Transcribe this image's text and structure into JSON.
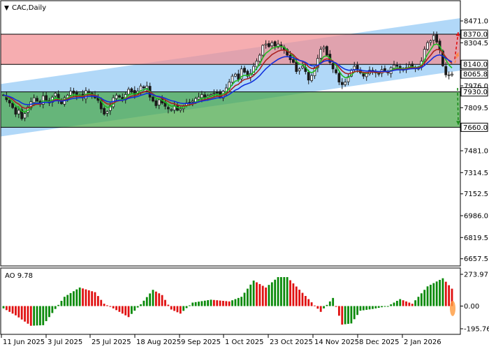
{
  "header": {
    "symbol_label": "CAC,Daily",
    "menu_glyph": "▼"
  },
  "colors": {
    "channel": "#a8d4f7",
    "resistance_zone": "#f28e92",
    "support_zone": "#4aa84a",
    "ema_fast": "#22bb22",
    "ema_mid": "#aa2222",
    "ema_slow": "#1030dd",
    "candle": "#1a1a1a",
    "ao_up": "#0a8a0a",
    "ao_down": "#e01010",
    "arrow_up": "#e01010",
    "arrow_down": "#1a8a1a"
  },
  "chart_data": [
    {
      "type": "candlestick",
      "title": "CAC,Daily",
      "ylim": [
        7620,
        8520
      ],
      "y_ticks": [
        "8471.0",
        "8304.5",
        "8138.0",
        "7976.0",
        "7809.5",
        "7481.0",
        "7314.5",
        "7152.5",
        "6986.0",
        "6819.5",
        "6657.5"
      ],
      "x_ticks": [
        "11 Jun 2025",
        "3 Jul 2025",
        "25 Jul 2025",
        "18 Aug 2025",
        "9 Sep 2025",
        "1 Oct 2025",
        "23 Oct 2025",
        "14 Nov 2025",
        "8 Dec 2025",
        "2 Jan 2026"
      ],
      "levels": [
        {
          "value": 8370.0,
          "label": "8370.0"
        },
        {
          "value": 8140.0,
          "label": "8140.0"
        },
        {
          "value": 7930.0,
          "label": "7930.0"
        },
        {
          "value": 7660.0,
          "label": "7660.0"
        }
      ],
      "current_price": {
        "value": 8065.8,
        "label": "8065.8"
      },
      "zones": [
        {
          "name": "resistance",
          "from": 8140,
          "to": 8370
        },
        {
          "name": "support",
          "from": 7660,
          "to": 7930
        }
      ],
      "channel": {
        "upper": [
          [
            0,
            7990
          ],
          [
            152,
            8500
          ]
        ],
        "lower": [
          [
            0,
            7590
          ],
          [
            152,
            8100
          ]
        ]
      },
      "price_path": [
        7905,
        7870,
        7845,
        7810,
        7760,
        7790,
        7725,
        7765,
        7815,
        7855,
        7885,
        7860,
        7835,
        7900,
        7860,
        7845,
        7890,
        7920,
        7865,
        7840,
        7885,
        7905,
        7935,
        7920,
        7900,
        7905,
        7885,
        7940,
        7925,
        7905,
        7885,
        7865,
        7800,
        7760,
        7780,
        7825,
        7885,
        7905,
        7890,
        7870,
        7910,
        7950,
        7935,
        7910,
        7935,
        7975,
        7960,
        7975,
        7890,
        7860,
        7825,
        7870,
        7845,
        7820,
        7800,
        7795,
        7825,
        7790,
        7800,
        7820,
        7845,
        7845,
        7860,
        7880,
        7890,
        7910,
        7890,
        7900,
        7910,
        7920,
        7925,
        7890,
        7935,
        7960,
        8005,
        8050,
        8065,
        8025,
        8105,
        8080,
        8050,
        8070,
        8125,
        8165,
        8210,
        8285,
        8295,
        8275,
        8305,
        8280,
        8295,
        8275,
        8255,
        8210,
        8175,
        8155,
        8085,
        8105,
        8125,
        8085,
        8020,
        8055,
        8115,
        8185,
        8255,
        8270,
        8210,
        8155,
        8105,
        8075,
        8005,
        7985,
        8005,
        8045,
        8095,
        8125,
        8105,
        8075,
        8050,
        8070,
        8095,
        8085,
        8075,
        8065,
        8100,
        8090,
        8075,
        8115,
        8135,
        8125,
        8105,
        8095,
        8115,
        8135,
        8125,
        8110,
        8120,
        8165,
        8255,
        8305,
        8320,
        8360,
        8310,
        8250,
        8130,
        8060,
        8060,
        8066
      ],
      "indicators": [
        "EMA fast",
        "EMA mid",
        "EMA slow",
        "Price channel",
        "Resistance zone",
        "Support zone"
      ]
    },
    {
      "type": "histogram",
      "title": "AO 9.78",
      "ylim": [
        -195.76,
        273.97
      ],
      "y_ticks": [
        "273.97",
        "0.00",
        "-195.76"
      ],
      "values_shape": [
        [
          0,
          -20
        ],
        [
          4,
          -80
        ],
        [
          9,
          -170
        ],
        [
          13,
          -165
        ],
        [
          16,
          -60
        ],
        [
          20,
          80
        ],
        [
          25,
          160
        ],
        [
          30,
          120
        ],
        [
          33,
          20
        ],
        [
          36,
          -20
        ],
        [
          41,
          -95
        ],
        [
          45,
          15
        ],
        [
          49,
          140
        ],
        [
          52,
          95
        ],
        [
          55,
          -30
        ],
        [
          58,
          -65
        ],
        [
          62,
          30
        ],
        [
          68,
          55
        ],
        [
          74,
          40
        ],
        [
          78,
          80
        ],
        [
          82,
          220
        ],
        [
          86,
          160
        ],
        [
          90,
          250
        ],
        [
          93,
          250
        ],
        [
          100,
          60
        ],
        [
          104,
          -50
        ],
        [
          108,
          70
        ],
        [
          111,
          -160
        ],
        [
          114,
          -150
        ],
        [
          117,
          -40
        ],
        [
          121,
          -25
        ],
        [
          126,
          0
        ],
        [
          130,
          60
        ],
        [
          134,
          20
        ],
        [
          139,
          170
        ],
        [
          144,
          240
        ],
        [
          147,
          150
        ],
        [
          150,
          -20
        ]
      ]
    }
  ]
}
